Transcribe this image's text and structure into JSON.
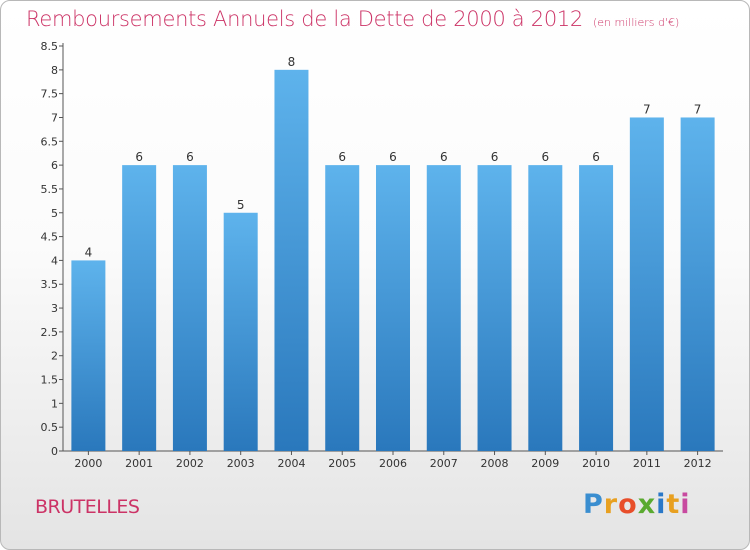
{
  "title": "Remboursements Annuels de la Dette de 2000 à 2012",
  "unit": "(en milliers d'€)",
  "commune": "BRUTELLES",
  "logo": {
    "letters": [
      "P",
      "r",
      "o",
      "x",
      "i",
      "t",
      "i"
    ],
    "colors": [
      "#3a8ed0",
      "#e8a020",
      "#e84e2a",
      "#5aaa30",
      "#2a78c8",
      "#e8a020",
      "#c84aa0"
    ]
  },
  "colors": {
    "title": "#cc3366",
    "bar": "#3d98dd",
    "bar_light": "#5eb3ec",
    "bar_dark": "#2a78bc"
  },
  "chart_data": {
    "type": "bar",
    "categories": [
      "2000",
      "2001",
      "2002",
      "2003",
      "2004",
      "2005",
      "2006",
      "2007",
      "2008",
      "2009",
      "2010",
      "2011",
      "2012"
    ],
    "values": [
      4,
      6,
      6,
      5,
      8,
      6,
      6,
      6,
      6,
      6,
      6,
      7,
      7
    ],
    "ylim": [
      0,
      8.5
    ],
    "yticks": [
      "0",
      "0.5",
      "1",
      "1.5",
      "2",
      "2.5",
      "3",
      "3.5",
      "4",
      "4.5",
      "5",
      "5.5",
      "6",
      "6.5",
      "7",
      "7.5",
      "8",
      "8.5"
    ],
    "grid": false,
    "legend": "none"
  }
}
